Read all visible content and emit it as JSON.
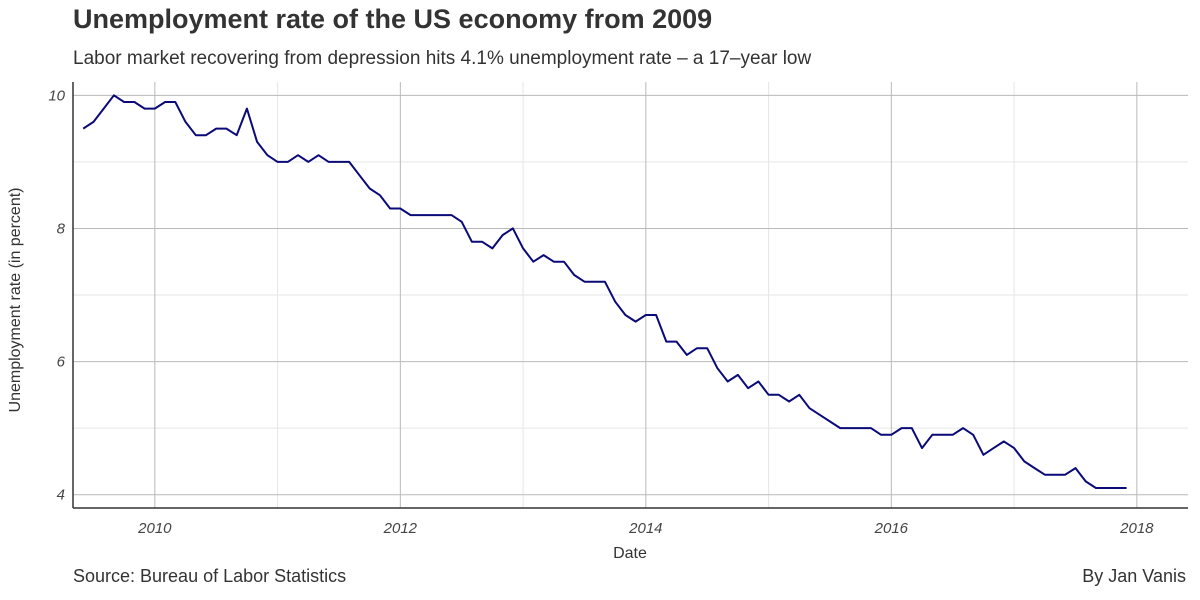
{
  "title": "Unemployment rate of the US economy from 2009",
  "subtitle": "Labor market recovering from depression hits 4.1% unemployment rate – a 17–year low",
  "caption_left": "Source: Bureau of Labor Statistics",
  "caption_right": "By Jan Vanis",
  "colors": {
    "line": "#0a0a78",
    "grid_major": "#b9b9b9",
    "grid_minor": "#e6e6e6",
    "axis": "#333333"
  },
  "chart_data": {
    "type": "line",
    "title": "Unemployment rate of the US economy from 2009",
    "subtitle": "Labor market recovering from depression hits 4.1% unemployment rate – a 17–year low",
    "xlabel": "Date",
    "ylabel": "Unemployment rate (in percent)",
    "x_ticks": [
      "2010",
      "2012",
      "2014",
      "2016",
      "2018"
    ],
    "y_ticks": [
      "4",
      "6",
      "8",
      "10"
    ],
    "xlim": [
      "2009-05-01",
      "2018-06-01"
    ],
    "ylim": [
      3.8,
      10.2
    ],
    "grid": true,
    "legend": "none",
    "series": [
      {
        "x": [
          "2009-06",
          "2009-07",
          "2009-08",
          "2009-09",
          "2009-10",
          "2009-11",
          "2009-12",
          "2010-01",
          "2010-02",
          "2010-03",
          "2010-04",
          "2010-05",
          "2010-06",
          "2010-07",
          "2010-08",
          "2010-09",
          "2010-10",
          "2010-11",
          "2010-12",
          "2011-01",
          "2011-02",
          "2011-03",
          "2011-04",
          "2011-05",
          "2011-06",
          "2011-07",
          "2011-08",
          "2011-09",
          "2011-10",
          "2011-11",
          "2011-12",
          "2012-01",
          "2012-02",
          "2012-03",
          "2012-04",
          "2012-05",
          "2012-06",
          "2012-07",
          "2012-08",
          "2012-09",
          "2012-10",
          "2012-11",
          "2012-12",
          "2013-01",
          "2013-02",
          "2013-03",
          "2013-04",
          "2013-05",
          "2013-06",
          "2013-07",
          "2013-08",
          "2013-09",
          "2013-10",
          "2013-11",
          "2013-12",
          "2014-01",
          "2014-02",
          "2014-03",
          "2014-04",
          "2014-05",
          "2014-06",
          "2014-07",
          "2014-08",
          "2014-09",
          "2014-10",
          "2014-11",
          "2014-12",
          "2015-01",
          "2015-02",
          "2015-03",
          "2015-04",
          "2015-05",
          "2015-06",
          "2015-07",
          "2015-08",
          "2015-09",
          "2015-10",
          "2015-11",
          "2015-12",
          "2016-01",
          "2016-02",
          "2016-03",
          "2016-04",
          "2016-05",
          "2016-06",
          "2016-07",
          "2016-08",
          "2016-09",
          "2016-10",
          "2016-11",
          "2016-12",
          "2017-01",
          "2017-02",
          "2017-03",
          "2017-04",
          "2017-05",
          "2017-06",
          "2017-07",
          "2017-08",
          "2017-09",
          "2017-10",
          "2017-11",
          "2017-12"
        ],
        "y": [
          9.5,
          9.6,
          9.8,
          10.0,
          9.9,
          9.9,
          9.8,
          9.8,
          9.9,
          9.9,
          9.6,
          9.4,
          9.4,
          9.5,
          9.5,
          9.4,
          9.8,
          9.3,
          9.1,
          9.0,
          9.0,
          9.1,
          9.0,
          9.1,
          9.0,
          9.0,
          9.0,
          8.8,
          8.6,
          8.5,
          8.3,
          8.3,
          8.2,
          8.2,
          8.2,
          8.2,
          8.2,
          8.1,
          7.8,
          7.8,
          7.7,
          7.9,
          8.0,
          7.7,
          7.5,
          7.6,
          7.5,
          7.5,
          7.3,
          7.2,
          7.2,
          7.2,
          6.9,
          6.7,
          6.6,
          6.7,
          6.7,
          6.3,
          6.3,
          6.1,
          6.2,
          6.2,
          5.9,
          5.7,
          5.8,
          5.6,
          5.7,
          5.5,
          5.5,
          5.4,
          5.5,
          5.3,
          5.2,
          5.1,
          5.0,
          5.0,
          5.0,
          5.0,
          4.9,
          4.9,
          5.0,
          5.0,
          4.7,
          4.9,
          4.9,
          4.9,
          5.0,
          4.9,
          4.6,
          4.7,
          4.8,
          4.7,
          4.5,
          4.4,
          4.3,
          4.3,
          4.3,
          4.4,
          4.2,
          4.1,
          4.1,
          4.1,
          4.1
        ]
      }
    ]
  }
}
